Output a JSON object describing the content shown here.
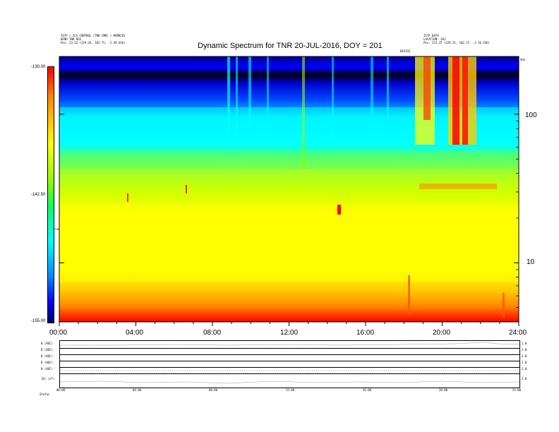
{
  "header": {
    "left_lines": [
      "ISTP / ICS CONTROL (TNR-CMM) / MARRCES",
      "WIND TNR RCD",
      "Pos: 23.53 (229.26, 102.75, -2.49 GSE)"
    ],
    "right_lines": [
      "ISTP DATA",
      "LOCATION: 201",
      "Pos: 231.25 (229.51, 102.27, -2.16 GSE)"
    ],
    "center_mark": "DEVICE"
  },
  "chart_data": {
    "type": "heatmap",
    "title": "Dynamic Spectrum for TNR 20-JUL-2016, DOY = 201",
    "x_ticks": [
      "00:00",
      "04:00",
      "08:00",
      "12:00",
      "16:00",
      "20:00",
      "24:00"
    ],
    "x_range_hours": [
      0,
      24
    ],
    "y_scale": "log",
    "y_range": [
      4,
      245
    ],
    "y_ticks": [
      "100",
      "10"
    ],
    "y_tick_values": [
      100,
      10
    ],
    "y_unit_mark": "kHz",
    "colorbar": {
      "ticks": [
        "-130.00",
        "-142.50",
        "-155.00"
      ],
      "tick_values": [
        -130,
        -142.5,
        -155
      ],
      "range": [
        -155,
        -130
      ],
      "label": "TNR",
      "colors": [
        "#ff0000",
        "#ff8800",
        "#ffff00",
        "#88ff00",
        "#00ff66",
        "#00ffff",
        "#0088ff",
        "#0000ff",
        "#000066"
      ]
    },
    "panels": [
      {
        "label": "B (ADC)",
        "right": "2.0"
      },
      {
        "label": "B (ADC)",
        "right": "2.0"
      },
      {
        "label": "B (ADC)",
        "right": "2.0"
      },
      {
        "label": "B (ADC)",
        "right": "2.0"
      },
      {
        "label": "N (ADC)",
        "right": "2.0"
      },
      {
        "label": "|B| (nT)",
        "right": "2.0"
      }
    ],
    "mini_x_ticks": [
      "00:00",
      "04:00",
      "08:00",
      "12:00",
      "16:00",
      "20:00",
      "24:00"
    ],
    "mini_footer_label": "Status"
  }
}
